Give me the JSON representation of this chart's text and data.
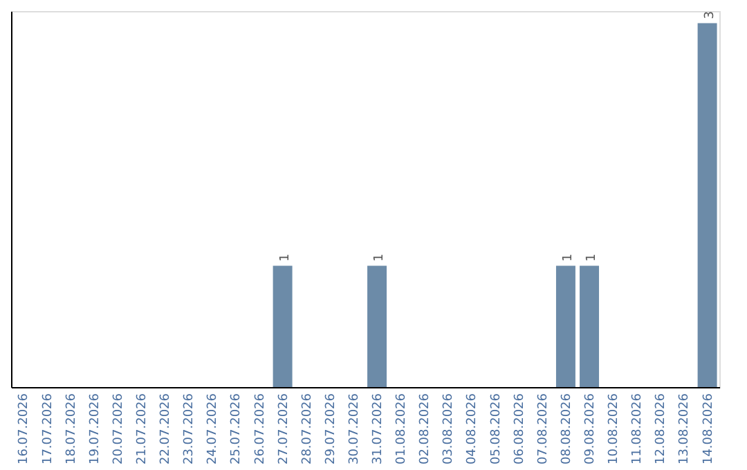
{
  "chart_data": {
    "type": "bar",
    "categories": [
      "16.07.2026",
      "17.07.2026",
      "18.07.2026",
      "19.07.2026",
      "20.07.2026",
      "21.07.2026",
      "22.07.2026",
      "23.07.2026",
      "24.07.2026",
      "25.07.2026",
      "26.07.2026",
      "27.07.2026",
      "28.07.2026",
      "29.07.2026",
      "30.07.2026",
      "31.07.2026",
      "01.08.2026",
      "02.08.2026",
      "03.08.2026",
      "04.08.2026",
      "05.08.2026",
      "06.08.2026",
      "07.08.2026",
      "08.08.2026",
      "09.08.2026",
      "10.08.2026",
      "11.08.2026",
      "12.08.2026",
      "13.08.2026",
      "14.08.2026"
    ],
    "values": [
      0,
      0,
      0,
      0,
      0,
      0,
      0,
      0,
      0,
      0,
      0,
      1,
      0,
      0,
      0,
      1,
      0,
      0,
      0,
      0,
      0,
      0,
      0,
      1,
      1,
      0,
      0,
      0,
      0,
      3
    ],
    "value_labels": [
      null,
      null,
      null,
      null,
      null,
      null,
      null,
      null,
      null,
      null,
      null,
      "1",
      null,
      null,
      null,
      "1",
      null,
      null,
      null,
      null,
      null,
      null,
      null,
      "1",
      "1",
      null,
      null,
      null,
      null,
      "3"
    ],
    "color": "#6c8ba8",
    "ylim": [
      0,
      3.1
    ],
    "tick_labels": "x",
    "grid": false
  }
}
